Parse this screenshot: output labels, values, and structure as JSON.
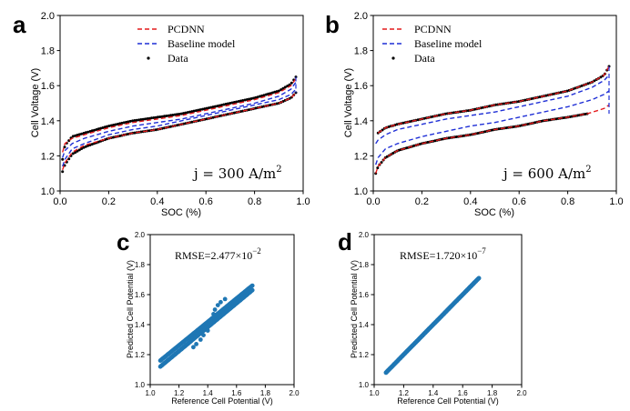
{
  "chart_data": [
    {
      "panel": "a",
      "type": "line",
      "xlabel": "SOC (%)",
      "ylabel": "Cell Voltage (V)",
      "xlim": [
        0.0,
        1.0
      ],
      "ylim": [
        1.0,
        2.0
      ],
      "xticks": [
        0.0,
        0.2,
        0.4,
        0.6,
        0.8,
        1.0
      ],
      "yticks": [
        1.0,
        1.2,
        1.4,
        1.6,
        1.8,
        2.0
      ],
      "annotation": {
        "prefix": "j = 300 A/m",
        "sup": "2"
      },
      "legend": [
        "PCDNN",
        "Baseline model",
        "Data"
      ],
      "colors": {
        "pcdnn": "#e41a1c",
        "baseline": "#1f2fd6",
        "data": "#000000"
      },
      "curves": {
        "data_charge": [
          [
            0.01,
            1.18
          ],
          [
            0.02,
            1.26
          ],
          [
            0.05,
            1.31
          ],
          [
            0.1,
            1.33
          ],
          [
            0.2,
            1.37
          ],
          [
            0.3,
            1.4
          ],
          [
            0.4,
            1.42
          ],
          [
            0.5,
            1.44
          ],
          [
            0.6,
            1.47
          ],
          [
            0.7,
            1.5
          ],
          [
            0.8,
            1.53
          ],
          [
            0.9,
            1.57
          ],
          [
            0.95,
            1.61
          ],
          [
            0.97,
            1.65
          ]
        ],
        "data_discharge": [
          [
            0.01,
            1.11
          ],
          [
            0.02,
            1.15
          ],
          [
            0.05,
            1.21
          ],
          [
            0.1,
            1.25
          ],
          [
            0.2,
            1.3
          ],
          [
            0.3,
            1.33
          ],
          [
            0.4,
            1.35
          ],
          [
            0.5,
            1.38
          ],
          [
            0.6,
            1.41
          ],
          [
            0.7,
            1.44
          ],
          [
            0.8,
            1.47
          ],
          [
            0.9,
            1.5
          ],
          [
            0.95,
            1.53
          ],
          [
            0.97,
            1.56
          ]
        ],
        "pcdnn_charge": [
          [
            0.01,
            1.22
          ],
          [
            0.02,
            1.27
          ],
          [
            0.05,
            1.3
          ],
          [
            0.1,
            1.32
          ],
          [
            0.2,
            1.36
          ],
          [
            0.3,
            1.39
          ],
          [
            0.4,
            1.41
          ],
          [
            0.5,
            1.43
          ],
          [
            0.6,
            1.46
          ],
          [
            0.7,
            1.49
          ],
          [
            0.8,
            1.52
          ],
          [
            0.9,
            1.56
          ],
          [
            0.95,
            1.6
          ],
          [
            0.97,
            1.64
          ]
        ],
        "pcdnn_discharge": [
          [
            0.01,
            1.12
          ],
          [
            0.02,
            1.16
          ],
          [
            0.05,
            1.22
          ],
          [
            0.1,
            1.26
          ],
          [
            0.2,
            1.3
          ],
          [
            0.3,
            1.33
          ],
          [
            0.4,
            1.35
          ],
          [
            0.5,
            1.38
          ],
          [
            0.6,
            1.41
          ],
          [
            0.7,
            1.44
          ],
          [
            0.8,
            1.47
          ],
          [
            0.9,
            1.5
          ],
          [
            0.95,
            1.53
          ],
          [
            0.97,
            1.56
          ]
        ],
        "baseline_charge": [
          [
            0.01,
            1.19
          ],
          [
            0.02,
            1.23
          ],
          [
            0.05,
            1.27
          ],
          [
            0.1,
            1.3
          ],
          [
            0.2,
            1.34
          ],
          [
            0.3,
            1.37
          ],
          [
            0.4,
            1.39
          ],
          [
            0.5,
            1.41
          ],
          [
            0.6,
            1.44
          ],
          [
            0.7,
            1.47
          ],
          [
            0.8,
            1.5
          ],
          [
            0.9,
            1.54
          ],
          [
            0.95,
            1.58
          ],
          [
            0.97,
            1.62
          ]
        ],
        "baseline_discharge": [
          [
            0.01,
            1.14
          ],
          [
            0.02,
            1.18
          ],
          [
            0.05,
            1.24
          ],
          [
            0.1,
            1.27
          ],
          [
            0.2,
            1.32
          ],
          [
            0.3,
            1.35
          ],
          [
            0.4,
            1.37
          ],
          [
            0.5,
            1.4
          ],
          [
            0.6,
            1.43
          ],
          [
            0.7,
            1.46
          ],
          [
            0.8,
            1.49
          ],
          [
            0.9,
            1.52
          ],
          [
            0.95,
            1.55
          ],
          [
            0.97,
            1.58
          ]
        ]
      }
    },
    {
      "panel": "b",
      "type": "line",
      "xlabel": "SOC (%)",
      "ylabel": "Cell Voltage (V)",
      "xlim": [
        0.0,
        1.0
      ],
      "ylim": [
        1.0,
        2.0
      ],
      "xticks": [
        0.0,
        0.2,
        0.4,
        0.6,
        0.8,
        1.0
      ],
      "yticks": [
        1.0,
        1.2,
        1.4,
        1.6,
        1.8,
        2.0
      ],
      "annotation": {
        "prefix": "j = 600 A/m",
        "sup": "2"
      },
      "legend": [
        "PCDNN",
        "Baseline model",
        "Data"
      ],
      "colors": {
        "pcdnn": "#e41a1c",
        "baseline": "#1f2fd6",
        "data": "#000000"
      },
      "curves": {
        "data_charge": [
          [
            0.02,
            1.33
          ],
          [
            0.05,
            1.36
          ],
          [
            0.1,
            1.38
          ],
          [
            0.2,
            1.41
          ],
          [
            0.3,
            1.44
          ],
          [
            0.4,
            1.46
          ],
          [
            0.5,
            1.49
          ],
          [
            0.6,
            1.51
          ],
          [
            0.7,
            1.54
          ],
          [
            0.8,
            1.57
          ],
          [
            0.9,
            1.62
          ],
          [
            0.95,
            1.66
          ],
          [
            0.97,
            1.71
          ]
        ],
        "data_discharge": [
          [
            0.01,
            1.1
          ],
          [
            0.02,
            1.14
          ],
          [
            0.05,
            1.19
          ],
          [
            0.1,
            1.23
          ],
          [
            0.2,
            1.27
          ],
          [
            0.3,
            1.3
          ],
          [
            0.4,
            1.32
          ],
          [
            0.5,
            1.35
          ],
          [
            0.6,
            1.37
          ],
          [
            0.7,
            1.4
          ],
          [
            0.8,
            1.42
          ],
          [
            0.88,
            1.44
          ]
        ],
        "pcdnn_charge": [
          [
            0.02,
            1.33
          ],
          [
            0.05,
            1.36
          ],
          [
            0.1,
            1.38
          ],
          [
            0.2,
            1.41
          ],
          [
            0.3,
            1.44
          ],
          [
            0.4,
            1.46
          ],
          [
            0.5,
            1.49
          ],
          [
            0.6,
            1.51
          ],
          [
            0.7,
            1.54
          ],
          [
            0.8,
            1.57
          ],
          [
            0.9,
            1.62
          ],
          [
            0.95,
            1.66
          ],
          [
            0.97,
            1.71
          ]
        ],
        "pcdnn_discharge": [
          [
            0.01,
            1.1
          ],
          [
            0.02,
            1.14
          ],
          [
            0.05,
            1.19
          ],
          [
            0.1,
            1.23
          ],
          [
            0.2,
            1.27
          ],
          [
            0.3,
            1.3
          ],
          [
            0.4,
            1.32
          ],
          [
            0.5,
            1.35
          ],
          [
            0.6,
            1.37
          ],
          [
            0.7,
            1.4
          ],
          [
            0.8,
            1.42
          ],
          [
            0.88,
            1.44
          ],
          [
            0.95,
            1.47
          ],
          [
            0.97,
            1.49
          ]
        ],
        "baseline_charge": [
          [
            0.01,
            1.27
          ],
          [
            0.02,
            1.29
          ],
          [
            0.05,
            1.32
          ],
          [
            0.1,
            1.35
          ],
          [
            0.2,
            1.38
          ],
          [
            0.3,
            1.41
          ],
          [
            0.4,
            1.43
          ],
          [
            0.5,
            1.45
          ],
          [
            0.6,
            1.48
          ],
          [
            0.7,
            1.51
          ],
          [
            0.8,
            1.54
          ],
          [
            0.9,
            1.59
          ],
          [
            0.95,
            1.63
          ],
          [
            0.97,
            1.66
          ]
        ],
        "baseline_discharge": [
          [
            0.01,
            1.15
          ],
          [
            0.02,
            1.19
          ],
          [
            0.05,
            1.24
          ],
          [
            0.1,
            1.27
          ],
          [
            0.2,
            1.31
          ],
          [
            0.3,
            1.34
          ],
          [
            0.4,
            1.37
          ],
          [
            0.5,
            1.39
          ],
          [
            0.6,
            1.42
          ],
          [
            0.7,
            1.45
          ],
          [
            0.8,
            1.48
          ],
          [
            0.9,
            1.52
          ],
          [
            0.95,
            1.55
          ],
          [
            0.97,
            1.57
          ]
        ]
      }
    },
    {
      "panel": "c",
      "type": "scatter",
      "xlabel": "Reference Cell Potential (V)",
      "ylabel": "Predicted Cell Potential (V)",
      "xlim": [
        1.0,
        2.0
      ],
      "ylim": [
        1.0,
        2.0
      ],
      "xticks": [
        1.0,
        1.2,
        1.4,
        1.6,
        1.8,
        2.0
      ],
      "yticks": [
        1.0,
        1.2,
        1.4,
        1.6,
        1.8,
        2.0
      ],
      "rmse": {
        "prefix": "RMSE=2.477×10",
        "sup": "−2"
      },
      "color": "#1f77b4",
      "band": {
        "x_range": [
          1.07,
          1.71
        ],
        "y_at_x_min": [
          1.12,
          1.16
        ],
        "y_at_x_max": [
          1.63,
          1.66
        ]
      },
      "outliers": [
        [
          1.32,
          1.27
        ],
        [
          1.35,
          1.3
        ],
        [
          1.37,
          1.33
        ],
        [
          1.4,
          1.36
        ],
        [
          1.42,
          1.42
        ],
        [
          1.44,
          1.47
        ],
        [
          1.47,
          1.53
        ],
        [
          1.49,
          1.55
        ],
        [
          1.52,
          1.57
        ],
        [
          1.3,
          1.25
        ],
        [
          1.45,
          1.5
        ]
      ]
    },
    {
      "panel": "d",
      "type": "scatter",
      "xlabel": "Reference Cell Potential (V)",
      "ylabel": "Predicted Cell Potential (V)",
      "xlim": [
        1.0,
        2.0
      ],
      "ylim": [
        1.0,
        2.0
      ],
      "xticks": [
        1.0,
        1.2,
        1.4,
        1.6,
        1.8,
        2.0
      ],
      "yticks": [
        1.0,
        1.2,
        1.4,
        1.6,
        1.8,
        2.0
      ],
      "rmse": {
        "prefix": "RMSE=1.720×10",
        "sup": "−7"
      },
      "color": "#1f77b4",
      "band": {
        "x_range": [
          1.08,
          1.71
        ],
        "y_at_x_min": [
          1.08,
          1.08
        ],
        "y_at_x_max": [
          1.71,
          1.71
        ]
      },
      "outliers": []
    }
  ]
}
